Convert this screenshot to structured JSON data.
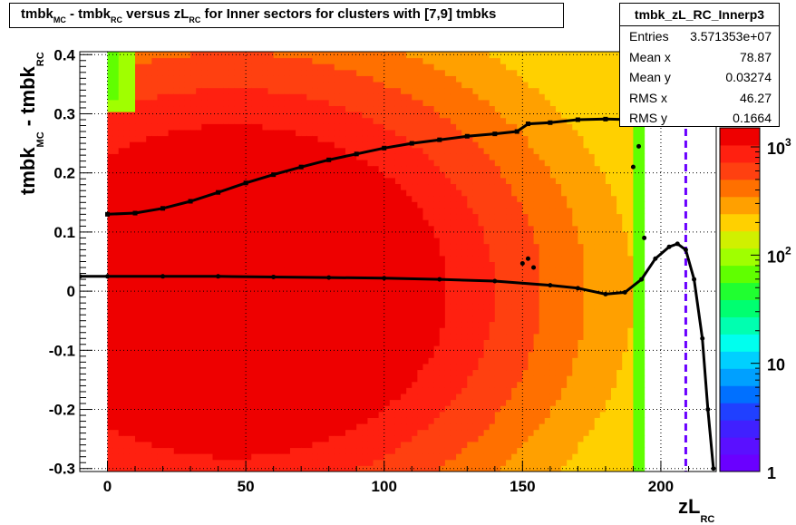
{
  "title": {
    "parts": [
      "tmbk",
      "MC",
      " - tmbk",
      "RC",
      " versus zL",
      "RC",
      " for Inner sectors for clusters with [7,9] tmbks"
    ]
  },
  "stats_box": {
    "title": "tmbk_zL_RC_Innerp3",
    "rows": [
      {
        "label": "Entries",
        "value": "3.571353e+07"
      },
      {
        "label": "Mean x",
        "value": "78.87"
      },
      {
        "label": "Mean y",
        "value": "0.03274"
      },
      {
        "label": "RMS x",
        "value": "46.27"
      },
      {
        "label": "RMS y",
        "value": "0.1664"
      }
    ]
  },
  "chart_data": {
    "type": "heatmap",
    "xlabel": {
      "main": "zL",
      "sub": "RC"
    },
    "ylabel": {
      "main1": "tmbk",
      "sub1": "MC",
      "main2": " - tmbk",
      "sub2": "RC"
    },
    "xlim": [
      -10,
      220
    ],
    "ylim": [
      -0.305,
      0.405
    ],
    "x_ticks": [
      0,
      50,
      100,
      150,
      200
    ],
    "y_ticks": [
      -0.3,
      -0.2,
      -0.1,
      0,
      0.1,
      0.2,
      0.3,
      0.4
    ],
    "grid": true,
    "z_scale": "log",
    "z_ticks": [
      {
        "value": 1,
        "label": "1"
      },
      {
        "value": 10,
        "label": "10"
      },
      {
        "value": 100,
        "label": "10",
        "exp": "2"
      },
      {
        "value": 1000,
        "label": "10",
        "exp": "3"
      }
    ],
    "data_x_range": [
      0,
      194
    ],
    "rms_profile": [
      {
        "x": 0,
        "y": 0.13
      },
      {
        "x": 10,
        "y": 0.132
      },
      {
        "x": 20,
        "y": 0.14
      },
      {
        "x": 30,
        "y": 0.152
      },
      {
        "x": 40,
        "y": 0.167
      },
      {
        "x": 50,
        "y": 0.183
      },
      {
        "x": 60,
        "y": 0.197
      },
      {
        "x": 70,
        "y": 0.21
      },
      {
        "x": 80,
        "y": 0.222
      },
      {
        "x": 90,
        "y": 0.232
      },
      {
        "x": 100,
        "y": 0.242
      },
      {
        "x": 110,
        "y": 0.25
      },
      {
        "x": 120,
        "y": 0.256
      },
      {
        "x": 130,
        "y": 0.262
      },
      {
        "x": 140,
        "y": 0.266
      },
      {
        "x": 148,
        "y": 0.27
      },
      {
        "x": 152,
        "y": 0.283
      },
      {
        "x": 160,
        "y": 0.285
      },
      {
        "x": 170,
        "y": 0.29
      },
      {
        "x": 180,
        "y": 0.291
      },
      {
        "x": 190,
        "y": 0.29
      }
    ],
    "mean_profile": [
      {
        "x": -10,
        "y": 0.025
      },
      {
        "x": 0,
        "y": 0.025
      },
      {
        "x": 20,
        "y": 0.025
      },
      {
        "x": 40,
        "y": 0.025
      },
      {
        "x": 60,
        "y": 0.024
      },
      {
        "x": 80,
        "y": 0.023
      },
      {
        "x": 100,
        "y": 0.022
      },
      {
        "x": 120,
        "y": 0.02
      },
      {
        "x": 140,
        "y": 0.017
      },
      {
        "x": 160,
        "y": 0.01
      },
      {
        "x": 170,
        "y": 0.005
      },
      {
        "x": 180,
        "y": -0.005
      },
      {
        "x": 187,
        "y": -0.002
      },
      {
        "x": 193,
        "y": 0.02
      },
      {
        "x": 198,
        "y": 0.055
      },
      {
        "x": 203,
        "y": 0.075
      },
      {
        "x": 206,
        "y": 0.08
      },
      {
        "x": 209,
        "y": 0.07
      },
      {
        "x": 212,
        "y": 0.02
      },
      {
        "x": 215,
        "y": -0.08
      },
      {
        "x": 217,
        "y": -0.2
      },
      {
        "x": 219,
        "y": -0.3
      }
    ],
    "outlier_points": [
      {
        "x": 150,
        "y": 0.047
      },
      {
        "x": 152,
        "y": 0.055
      },
      {
        "x": 154,
        "y": 0.04
      },
      {
        "x": 194,
        "y": 0.09
      },
      {
        "x": 192,
        "y": 0.245
      },
      {
        "x": 190,
        "y": 0.21
      }
    ],
    "dashed_line_x": 209
  }
}
